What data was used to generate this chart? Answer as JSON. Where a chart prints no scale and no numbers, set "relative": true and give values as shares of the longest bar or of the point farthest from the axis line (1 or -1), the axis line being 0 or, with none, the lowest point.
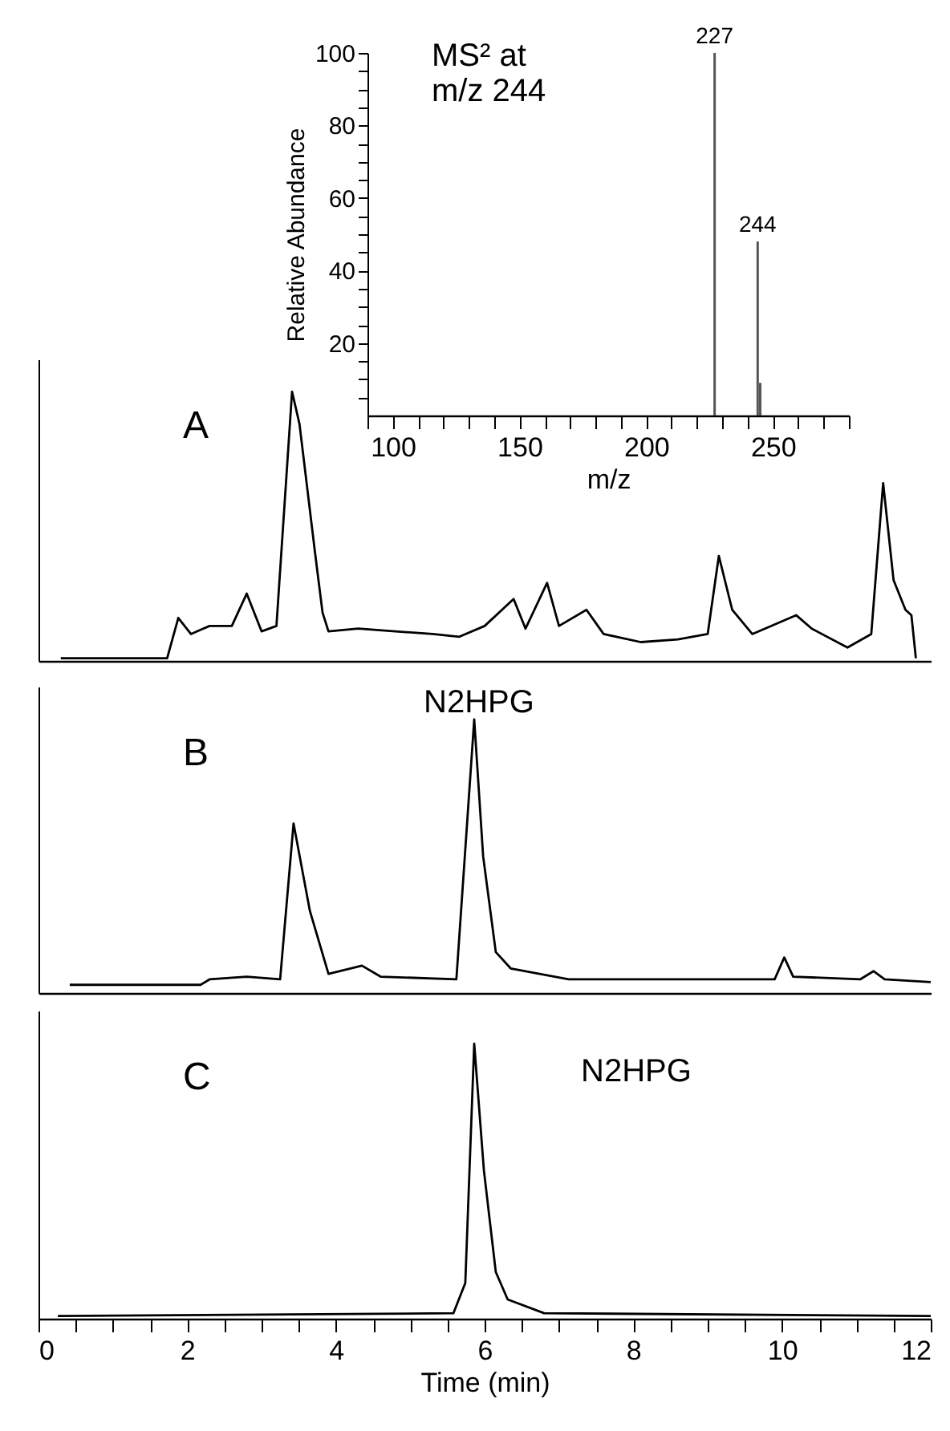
{
  "chart_data": [
    {
      "type": "bar",
      "xlabel": "m/z",
      "ylabel": "Relative Abundance",
      "x": [
        227,
        244,
        245
      ],
      "series": [
        {
          "color": "#555555",
          "values": [
            100,
            48,
            9
          ]
        }
      ],
      "xlim": [
        90,
        280
      ],
      "xticks": [
        {
          "value": 90,
          "label": null
        },
        100,
        {
          "value": 110,
          "label": null
        },
        {
          "value": 120,
          "label": null
        },
        {
          "value": 130,
          "label": null
        },
        {
          "value": 140,
          "label": null
        },
        150,
        {
          "value": 160,
          "label": null
        },
        {
          "value": 170,
          "label": null
        },
        {
          "value": 180,
          "label": null
        },
        {
          "value": 190,
          "label": null
        },
        200,
        {
          "value": 210,
          "label": null
        },
        {
          "value": 220,
          "label": null
        },
        {
          "value": 230,
          "label": null
        },
        {
          "value": 240,
          "label": null
        },
        250,
        {
          "value": 260,
          "label": null
        },
        {
          "value": 270,
          "label": null
        },
        {
          "value": 280,
          "label": null
        }
      ],
      "ylim": [
        0,
        100
      ],
      "yticks": [
        {
          "value": 5,
          "label": null
        },
        {
          "value": 10,
          "label": null
        },
        {
          "value": 15,
          "label": null
        },
        20,
        {
          "value": 25,
          "label": null
        },
        {
          "value": 30,
          "label": null
        },
        {
          "value": 35,
          "label": null
        },
        40,
        {
          "value": 45,
          "label": null
        },
        {
          "value": 50,
          "label": null
        },
        {
          "value": 55,
          "label": null
        },
        60,
        {
          "value": 65,
          "label": null
        },
        {
          "value": 70,
          "label": null
        },
        {
          "value": 75,
          "label": null
        },
        80,
        {
          "value": 85,
          "label": null
        },
        {
          "value": 90,
          "label": null
        },
        {
          "value": 95,
          "label": null
        },
        100
      ],
      "annotations": [
        "MS² at\nm/z 244",
        {
          "text": "227",
          "x": 227,
          "y": 100
        },
        {
          "text": "244",
          "x": 244,
          "y": 48
        }
      ]
    },
    {
      "type": "line",
      "title": "A",
      "relative": true,
      "xlim": [
        0,
        12
      ],
      "tick_labels": false,
      "xticks": [
        0,
        2,
        4,
        6,
        8,
        10,
        12
      ],
      "x": [
        0.3,
        1.0,
        1.73,
        1.88,
        2.05,
        2.3,
        2.6,
        2.8,
        3.0,
        3.2,
        3.41,
        3.51,
        3.72,
        3.82,
        3.9,
        4.3,
        4.8,
        5.3,
        5.66,
        6.0,
        6.39,
        6.55,
        6.84,
        7.0,
        7.37,
        7.6,
        8.1,
        8.6,
        9.0,
        9.15,
        9.33,
        9.6,
        10.19,
        10.4,
        10.88,
        11.2,
        11.36,
        11.5,
        11.66,
        11.74,
        11.8
      ],
      "series": [
        {
          "color": "#000000",
          "values": [
            0.01,
            0.01,
            0.01,
            0.16,
            0.1,
            0.13,
            0.13,
            0.25,
            0.11,
            0.13,
            1.0,
            0.88,
            0.4,
            0.18,
            0.11,
            0.12,
            0.11,
            0.1,
            0.09,
            0.13,
            0.23,
            0.12,
            0.29,
            0.13,
            0.19,
            0.1,
            0.07,
            0.08,
            0.1,
            0.39,
            0.19,
            0.1,
            0.17,
            0.12,
            0.05,
            0.1,
            0.66,
            0.3,
            0.19,
            0.17,
            0.01
          ]
        }
      ]
    },
    {
      "type": "line",
      "title": "B",
      "relative": true,
      "xlim": [
        0,
        12
      ],
      "tick_labels": false,
      "xticks": [
        0,
        2,
        4,
        6,
        8,
        10,
        12
      ],
      "x": [
        0.42,
        2.18,
        2.3,
        2.8,
        3.25,
        3.43,
        3.65,
        3.9,
        4.35,
        4.6,
        5.62,
        5.86,
        5.98,
        6.15,
        6.35,
        7.13,
        9.9,
        10.03,
        10.15,
        11.05,
        11.23,
        11.38,
        12.0
      ],
      "series": [
        {
          "color": "#000000",
          "values": [
            0.03,
            0.03,
            0.05,
            0.06,
            0.05,
            0.62,
            0.3,
            0.07,
            0.1,
            0.06,
            0.05,
            1.0,
            0.5,
            0.15,
            0.09,
            0.05,
            0.05,
            0.13,
            0.06,
            0.05,
            0.08,
            0.05,
            0.04
          ]
        }
      ],
      "annotations": [
        "N2HPG"
      ]
    },
    {
      "type": "line",
      "title": "C",
      "relative": true,
      "xlabel": "Time (min)",
      "xlim": [
        0,
        12
      ],
      "tick_labels": "x",
      "xticks": [
        0,
        {
          "value": 0.5,
          "label": null
        },
        {
          "value": 1,
          "label": null
        },
        {
          "value": 1.5,
          "label": null
        },
        2,
        {
          "value": 2.5,
          "label": null
        },
        {
          "value": 3,
          "label": null
        },
        {
          "value": 3.5,
          "label": null
        },
        4,
        {
          "value": 4.5,
          "label": null
        },
        {
          "value": 5,
          "label": null
        },
        {
          "value": 5.5,
          "label": null
        },
        6,
        {
          "value": 6.5,
          "label": null
        },
        {
          "value": 7,
          "label": null
        },
        {
          "value": 7.5,
          "label": null
        },
        8,
        {
          "value": 8.5,
          "label": null
        },
        {
          "value": 9,
          "label": null
        },
        {
          "value": 9.5,
          "label": null
        },
        10,
        {
          "value": 10.5,
          "label": null
        },
        {
          "value": 11,
          "label": null
        },
        {
          "value": 11.5,
          "label": null
        },
        12
      ],
      "x": [
        0.26,
        5.58,
        5.74,
        5.86,
        5.99,
        6.15,
        6.31,
        6.8,
        12.0
      ],
      "series": [
        {
          "color": "#000000",
          "values": [
            0.01,
            0.02,
            0.13,
            1.0,
            0.54,
            0.17,
            0.07,
            0.02,
            0.01
          ]
        }
      ],
      "annotations": [
        "N2HPG"
      ]
    }
  ]
}
